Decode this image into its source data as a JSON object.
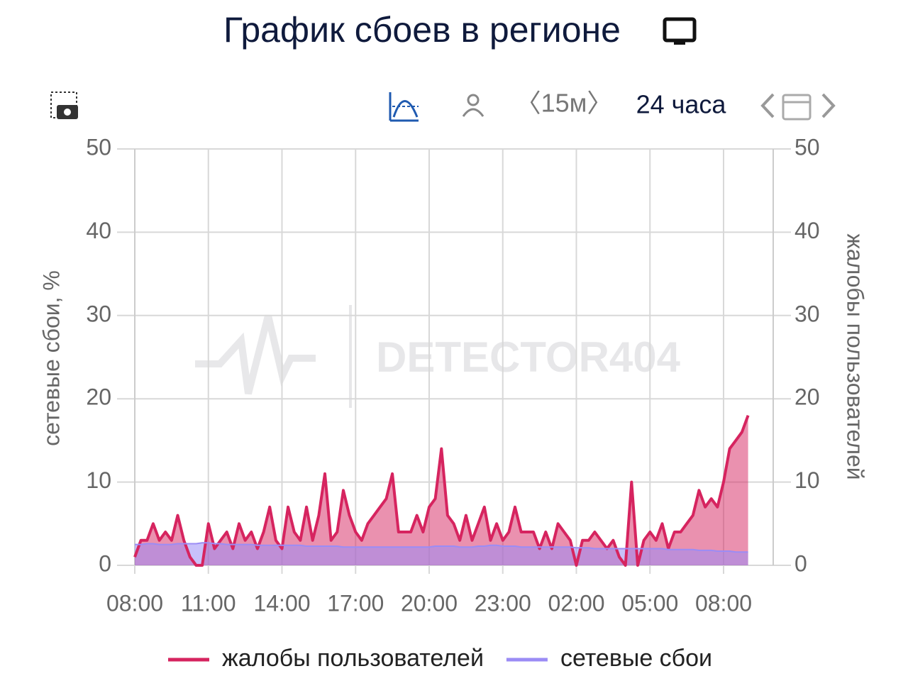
{
  "header": {
    "title": "График сбоев в регионе"
  },
  "toolbar": {
    "interval": "〈15м〉",
    "range": "24 часа"
  },
  "watermark": "DETECTOR404",
  "chart_data": {
    "type": "line",
    "x": [
      "08:00",
      null,
      null,
      null,
      null,
      null,
      null,
      null,
      null,
      null,
      null,
      null,
      "11:00",
      null,
      null,
      null,
      null,
      null,
      null,
      null,
      null,
      null,
      null,
      null,
      "14:00",
      null,
      null,
      null,
      null,
      null,
      null,
      null,
      null,
      null,
      null,
      null,
      "17:00",
      null,
      null,
      null,
      null,
      null,
      null,
      null,
      null,
      null,
      null,
      null,
      "20:00",
      null,
      null,
      null,
      null,
      null,
      null,
      null,
      null,
      null,
      null,
      null,
      "23:00",
      null,
      null,
      null,
      null,
      null,
      null,
      null,
      null,
      null,
      null,
      null,
      "02:00",
      null,
      null,
      null,
      null,
      null,
      null,
      null,
      null,
      null,
      null,
      null,
      "05:00",
      null,
      null,
      null,
      null,
      null,
      null,
      null,
      null,
      null,
      null,
      null,
      "08:00",
      null,
      null,
      null,
      null
    ],
    "ylabel": "сетевые сбои, %",
    "y2label": "жалобы пользователей",
    "ylim": [
      0,
      50
    ],
    "yticks": [
      0,
      10,
      20,
      30,
      40,
      50
    ],
    "y2lim": [
      0,
      50
    ],
    "y2ticks": [
      0,
      10,
      20,
      30,
      40,
      50
    ],
    "grid": true,
    "series": [
      {
        "name": "жалобы пользователей",
        "color": "#d6245f",
        "axis": "y2",
        "values": [
          1,
          3,
          3,
          5,
          3,
          4,
          3,
          6,
          3,
          1,
          0,
          0,
          5,
          2,
          3,
          4,
          2,
          5,
          3,
          4,
          2,
          4,
          7,
          3,
          2,
          7,
          4,
          3,
          7,
          3,
          6,
          11,
          3,
          4,
          9,
          6,
          4,
          3,
          5,
          6,
          7,
          8,
          11,
          4,
          4,
          4,
          6,
          4,
          7,
          8,
          14,
          6,
          5,
          3,
          6,
          3,
          5,
          7,
          3,
          5,
          3,
          4,
          7,
          4,
          4,
          4,
          2,
          4,
          2,
          5,
          4,
          3,
          0,
          3,
          3,
          4,
          3,
          2,
          3,
          1,
          0,
          10,
          0,
          3,
          4,
          3,
          5,
          2,
          4,
          4,
          5,
          6,
          9,
          7,
          8,
          7,
          10,
          14,
          15,
          16,
          18
        ]
      },
      {
        "name": "сетевые сбои",
        "color": "#9b8cf5",
        "values": [
          2.5,
          2.5,
          2.6,
          2.6,
          2.5,
          2.5,
          2.5,
          2.6,
          2.6,
          2.6,
          2.6,
          2.7,
          2.7,
          2.6,
          2.6,
          2.5,
          2.5,
          2.5,
          2.5,
          2.5,
          2.4,
          2.4,
          2.4,
          2.4,
          2.4,
          2.4,
          2.4,
          2.4,
          2.3,
          2.3,
          2.3,
          2.3,
          2.3,
          2.3,
          2.2,
          2.2,
          2.2,
          2.2,
          2.2,
          2.2,
          2.2,
          2.2,
          2.2,
          2.2,
          2.2,
          2.2,
          2.2,
          2.2,
          2.2,
          2.3,
          2.3,
          2.3,
          2.3,
          2.2,
          2.2,
          2.2,
          2.3,
          2.3,
          2.4,
          2.4,
          2.3,
          2.3,
          2.3,
          2.2,
          2.2,
          2.2,
          2.2,
          2.2,
          2.2,
          2.2,
          2.2,
          2.2,
          2.1,
          2.1,
          2.1,
          2.0,
          2.0,
          2.0,
          2.0,
          2.0,
          2.0,
          2.0,
          2.0,
          2.0,
          2.0,
          2.0,
          2.0,
          1.9,
          1.9,
          1.9,
          1.9,
          1.9,
          1.8,
          1.8,
          1.8,
          1.7,
          1.7,
          1.7,
          1.6,
          1.6,
          1.6
        ]
      }
    ],
    "legend": "bottom"
  }
}
